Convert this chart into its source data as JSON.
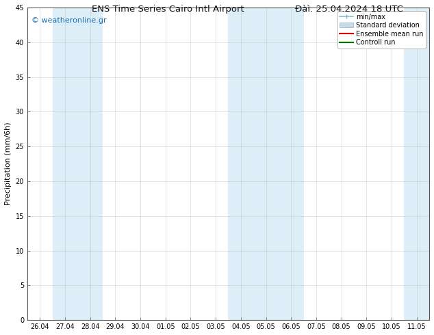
{
  "title_left": "ENS Time Series Cairo Intl Airport",
  "title_right": "Đàì. 25.04.2024 18 UTC",
  "ylabel": "Precipitation (mm/6h)",
  "ylim": [
    0,
    45
  ],
  "yticks": [
    0,
    5,
    10,
    15,
    20,
    25,
    30,
    35,
    40,
    45
  ],
  "xtick_labels": [
    "26.04",
    "27.04",
    "28.04",
    "29.04",
    "30.04",
    "01.05",
    "02.05",
    "03.05",
    "04.05",
    "05.05",
    "06.05",
    "07.05",
    "08.05",
    "09.05",
    "10.05",
    "11.05"
  ],
  "xtick_positions": [
    0,
    1,
    2,
    3,
    4,
    5,
    6,
    7,
    8,
    9,
    10,
    11,
    12,
    13,
    14,
    15
  ],
  "shaded_bands": [
    {
      "xmin": 0.5,
      "xmax": 2.5
    },
    {
      "xmin": 7.5,
      "xmax": 10.5
    },
    {
      "xmin": 14.5,
      "xmax": 15.5
    }
  ],
  "band_color": "#ddeef8",
  "background_color": "#ffffff",
  "plot_bg_color": "#ffffff",
  "legend_items": [
    {
      "label": "min/max",
      "color": "#a8d4f0",
      "style": "errorbar"
    },
    {
      "label": "Standard deviation",
      "color": "#c8dff0",
      "style": "fill"
    },
    {
      "label": "Ensemble mean run",
      "color": "#ff0000",
      "style": "line"
    },
    {
      "label": "Controll run",
      "color": "#00aa00",
      "style": "line"
    }
  ],
  "watermark": "© weatheronline.gr",
  "watermark_color": "#1a6fb5",
  "watermark_fontsize": 8,
  "title_fontsize": 9.5,
  "axis_fontsize": 8,
  "tick_fontsize": 7,
  "legend_fontsize": 7,
  "grid_color": "#bbbbbb",
  "spine_color": "#555555"
}
